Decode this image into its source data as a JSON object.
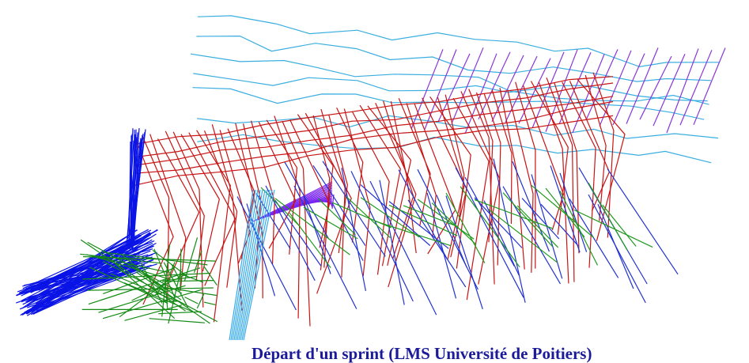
{
  "caption": "Départ d'un sprint (LMS Université de Poitiers)"
}
